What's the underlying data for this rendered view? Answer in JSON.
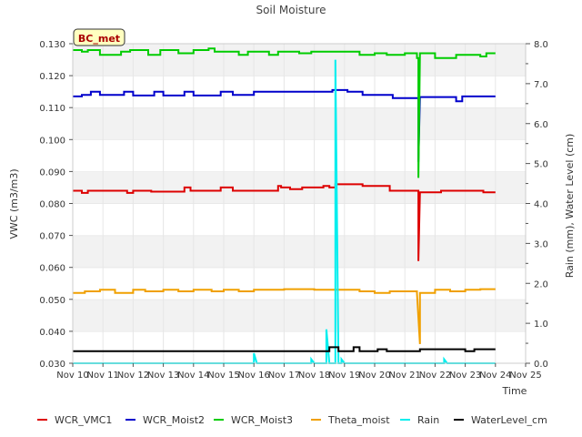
{
  "chart_data": {
    "type": "line",
    "title": "Soil Moisture",
    "xlabel": "Time",
    "ylabel": "VWC (m3/m3)",
    "y2label": "Rain (mm), Water Level (cm)",
    "site_label": "BC_met",
    "xlim": [
      10,
      25
    ],
    "ylim": [
      0.03,
      0.13
    ],
    "y2lim": [
      0.0,
      8.0
    ],
    "x_ticks": [
      10,
      11,
      12,
      13,
      14,
      15,
      16,
      17,
      18,
      19,
      20,
      21,
      22,
      23,
      24,
      25
    ],
    "x_tick_labels": [
      "Nov 10",
      "Nov 11",
      "Nov 12",
      "Nov 13",
      "Nov 14",
      "Nov 15",
      "Nov 16",
      "Nov 17",
      "Nov 18",
      "Nov 19",
      "Nov 20",
      "Nov 21",
      "Nov 22",
      "Nov 23",
      "Nov 24",
      "Nov 25"
    ],
    "y_ticks": [
      0.03,
      0.04,
      0.05,
      0.06,
      0.07,
      0.08,
      0.09,
      0.1,
      0.11,
      0.12,
      0.13
    ],
    "y_tick_labels": [
      "0.030",
      "0.040",
      "0.050",
      "0.060",
      "0.070",
      "0.080",
      "0.090",
      "0.100",
      "0.110",
      "0.120",
      "0.130"
    ],
    "y2_ticks": [
      0,
      1,
      2,
      3,
      4,
      5,
      6,
      7,
      8
    ],
    "y2_tick_labels": [
      "0.0",
      "1.0",
      "2.0",
      "3.0",
      "4.0",
      "5.0",
      "6.0",
      "7.0",
      "8.0"
    ],
    "grid": "horizontal bands",
    "legend_position": "bottom",
    "series": [
      {
        "name": "WCR_VMC1",
        "color": "#dd0000",
        "axis": "left",
        "x": [
          10.0,
          10.3,
          10.3,
          10.5,
          10.5,
          11.8,
          11.8,
          12.0,
          12.0,
          12.6,
          12.6,
          13.7,
          13.7,
          13.9,
          13.9,
          14.9,
          14.9,
          15.3,
          15.3,
          16.8,
          16.8,
          16.9,
          16.9,
          17.2,
          17.2,
          17.6,
          17.6,
          18.3,
          18.3,
          18.5,
          18.5,
          18.7,
          18.7,
          19.6,
          19.6,
          20.5,
          20.5,
          21.45,
          21.45,
          21.5,
          21.5,
          22.2,
          22.2,
          23.6,
          23.6,
          24.0
        ],
        "y": [
          0.084,
          0.084,
          0.0833,
          0.0833,
          0.084,
          0.084,
          0.0833,
          0.0833,
          0.084,
          0.084,
          0.0837,
          0.0837,
          0.085,
          0.085,
          0.084,
          0.084,
          0.085,
          0.085,
          0.084,
          0.084,
          0.0855,
          0.0855,
          0.085,
          0.085,
          0.0845,
          0.0845,
          0.085,
          0.085,
          0.0855,
          0.0855,
          0.085,
          0.085,
          0.086,
          0.086,
          0.0855,
          0.0855,
          0.084,
          0.084,
          0.062,
          0.0835,
          0.0835,
          0.0835,
          0.084,
          0.084,
          0.0835,
          0.0835
        ]
      },
      {
        "name": "WCR_Moist2",
        "color": "#0000cc",
        "axis": "left",
        "x": [
          10.0,
          10.3,
          10.3,
          10.6,
          10.6,
          10.9,
          10.9,
          11.7,
          11.7,
          12.0,
          12.0,
          12.7,
          12.7,
          13.0,
          13.0,
          13.7,
          13.7,
          14.0,
          14.0,
          14.9,
          14.9,
          15.3,
          15.3,
          16.0,
          16.0,
          18.6,
          18.6,
          19.1,
          19.1,
          19.6,
          19.6,
          20.6,
          20.6,
          21.45,
          21.45,
          21.5,
          21.5,
          22.7,
          22.7,
          22.9,
          22.9,
          24.0
        ],
        "y": [
          0.1135,
          0.1135,
          0.114,
          0.114,
          0.115,
          0.115,
          0.114,
          0.114,
          0.115,
          0.115,
          0.1138,
          0.1138,
          0.115,
          0.115,
          0.1138,
          0.1138,
          0.115,
          0.115,
          0.1138,
          0.1138,
          0.115,
          0.115,
          0.114,
          0.114,
          0.115,
          0.115,
          0.1155,
          0.1155,
          0.115,
          0.115,
          0.114,
          0.114,
          0.113,
          0.113,
          0.093,
          0.1133,
          0.1133,
          0.1133,
          0.112,
          0.112,
          0.1135,
          0.1135
        ]
      },
      {
        "name": "WCR_Moist3",
        "color": "#00cc00",
        "axis": "left",
        "x": [
          10.0,
          10.3,
          10.3,
          10.5,
          10.5,
          10.9,
          10.9,
          11.6,
          11.6,
          11.9,
          11.9,
          12.5,
          12.5,
          12.9,
          12.9,
          13.5,
          13.5,
          14.0,
          14.0,
          14.5,
          14.5,
          14.7,
          14.7,
          15.5,
          15.5,
          15.8,
          15.8,
          16.5,
          16.5,
          16.8,
          16.8,
          17.5,
          17.5,
          17.9,
          17.9,
          19.5,
          19.5,
          20.0,
          20.0,
          20.4,
          20.4,
          21.0,
          21.0,
          21.4,
          21.4,
          21.45,
          21.45,
          21.5,
          21.5,
          22.0,
          22.0,
          22.7,
          22.7,
          23.5,
          23.5,
          23.7,
          23.7,
          24.0
        ],
        "y": [
          0.128,
          0.128,
          0.1275,
          0.1275,
          0.128,
          0.128,
          0.1265,
          0.1265,
          0.1275,
          0.1275,
          0.128,
          0.128,
          0.1265,
          0.1265,
          0.128,
          0.128,
          0.127,
          0.127,
          0.128,
          0.128,
          0.1285,
          0.1285,
          0.1275,
          0.1275,
          0.1265,
          0.1265,
          0.1275,
          0.1275,
          0.1265,
          0.1265,
          0.1275,
          0.1275,
          0.127,
          0.127,
          0.1275,
          0.1275,
          0.1265,
          0.1265,
          0.127,
          0.127,
          0.1265,
          0.1265,
          0.127,
          0.127,
          0.1255,
          0.1255,
          0.088,
          0.127,
          0.127,
          0.127,
          0.1255,
          0.1255,
          0.1265,
          0.1265,
          0.126,
          0.126,
          0.127,
          0.127
        ]
      },
      {
        "name": "Theta_moist",
        "color": "#f0a000",
        "axis": "left",
        "x": [
          10.0,
          10.4,
          10.4,
          10.9,
          10.9,
          11.4,
          11.4,
          12.0,
          12.0,
          12.4,
          12.4,
          13.0,
          13.0,
          13.5,
          13.5,
          14.0,
          14.0,
          14.6,
          14.6,
          15.0,
          15.0,
          15.5,
          15.5,
          16.0,
          16.0,
          17.0,
          17.0,
          18.0,
          18.0,
          19.5,
          19.5,
          20.0,
          20.0,
          20.5,
          20.5,
          21.4,
          21.4,
          21.5,
          21.5,
          22.0,
          22.0,
          22.5,
          22.5,
          23.0,
          23.0,
          23.5,
          23.5,
          24.0
        ],
        "y": [
          0.052,
          0.052,
          0.0525,
          0.0525,
          0.053,
          0.053,
          0.052,
          0.052,
          0.053,
          0.053,
          0.0525,
          0.0525,
          0.053,
          0.053,
          0.0525,
          0.0525,
          0.053,
          0.053,
          0.0525,
          0.0525,
          0.053,
          0.053,
          0.0525,
          0.0525,
          0.053,
          0.053,
          0.0532,
          0.0532,
          0.053,
          0.053,
          0.0525,
          0.0525,
          0.052,
          0.052,
          0.0525,
          0.0525,
          0.052,
          0.036,
          0.052,
          0.052,
          0.053,
          0.053,
          0.0525,
          0.0525,
          0.053,
          0.053,
          0.0532,
          0.0532
        ]
      },
      {
        "name": "Rain",
        "color": "#00eeee",
        "axis": "right",
        "x": [
          10.0,
          16.0,
          16.0,
          16.1,
          16.1,
          17.9,
          17.9,
          18.0,
          18.0,
          18.4,
          18.4,
          18.5,
          18.5,
          18.7,
          18.7,
          18.8,
          18.8,
          18.9,
          18.9,
          19.0,
          19.0,
          22.3,
          22.3,
          22.4,
          22.4,
          24.0
        ],
        "y": [
          0.0,
          0.0,
          0.25,
          0.0,
          0.0,
          0.0,
          0.1,
          0.0,
          0.0,
          0.0,
          0.85,
          0.0,
          0.0,
          0.0,
          7.6,
          0.0,
          0.0,
          0.0,
          0.1,
          0.0,
          0.0,
          0.0,
          0.1,
          0.0,
          0.0,
          0.0
        ]
      },
      {
        "name": "WaterLevel_cm",
        "color": "#000000",
        "axis": "right",
        "x": [
          10.0,
          18.5,
          18.5,
          18.8,
          18.8,
          19.3,
          19.3,
          19.5,
          19.5,
          20.1,
          20.1,
          20.4,
          20.4,
          21.5,
          21.5,
          22.3,
          22.3,
          23.0,
          23.0,
          23.3,
          23.3,
          23.6,
          23.6,
          24.0
        ],
        "y": [
          0.3,
          0.3,
          0.4,
          0.4,
          0.3,
          0.3,
          0.4,
          0.4,
          0.3,
          0.3,
          0.35,
          0.35,
          0.3,
          0.3,
          0.35,
          0.35,
          0.35,
          0.35,
          0.3,
          0.3,
          0.35,
          0.35,
          0.35,
          0.35
        ]
      }
    ]
  }
}
